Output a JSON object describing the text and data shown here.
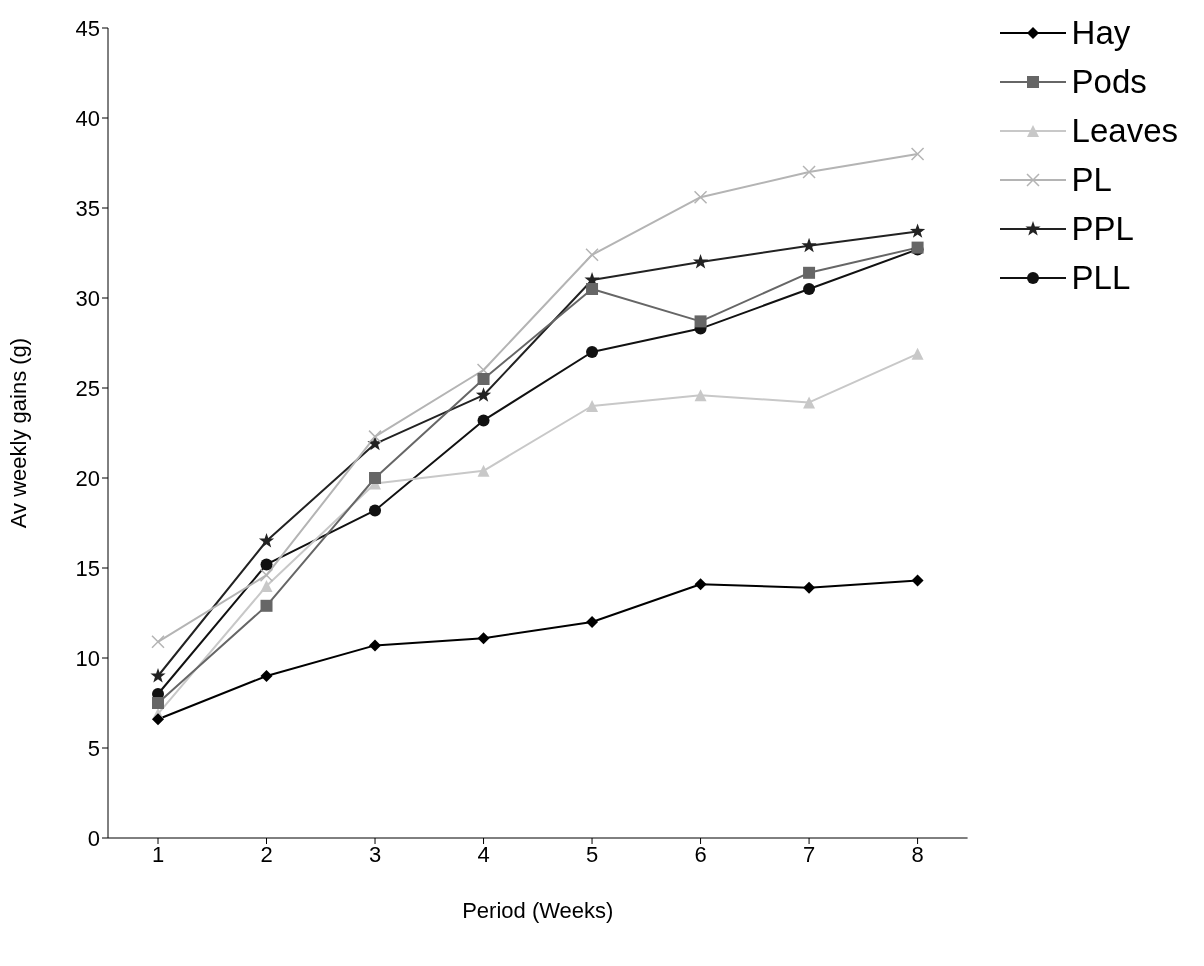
{
  "chart_data": {
    "type": "line",
    "xlabel": "Period (Weeks)",
    "ylabel": "Av weekly gains (g)",
    "categories": [
      "1",
      "2",
      "3",
      "4",
      "5",
      "6",
      "7",
      "8"
    ],
    "series": [
      {
        "name": "Hay",
        "color": "#000000",
        "marker": "diamond",
        "values": [
          6.6,
          9.0,
          10.7,
          11.1,
          12.0,
          14.1,
          13.9,
          14.3
        ]
      },
      {
        "name": "Pods",
        "color": "#666666",
        "marker": "square",
        "values": [
          7.5,
          12.9,
          20.0,
          25.5,
          30.5,
          28.7,
          31.4,
          32.8
        ]
      },
      {
        "name": "Leaves",
        "color": "#c8c8c8",
        "marker": "triangle",
        "values": [
          6.9,
          14.0,
          19.7,
          20.4,
          24.0,
          24.6,
          24.2,
          26.9
        ]
      },
      {
        "name": "PL",
        "color": "#b4b4b4",
        "marker": "cross",
        "values": [
          10.9,
          14.6,
          22.3,
          26.0,
          32.4,
          35.6,
          37.0,
          38.0
        ]
      },
      {
        "name": "PPL",
        "color": "#222222",
        "marker": "star",
        "values": [
          9.0,
          16.5,
          21.9,
          24.6,
          31.0,
          32.0,
          32.9,
          33.7
        ]
      },
      {
        "name": "PLL",
        "color": "#111111",
        "marker": "circle",
        "values": [
          8.0,
          15.2,
          18.2,
          23.2,
          27.0,
          28.3,
          30.5,
          32.7
        ]
      }
    ],
    "ylim": [
      0,
      45
    ],
    "yticks": [
      0,
      5,
      10,
      15,
      20,
      25,
      30,
      35,
      40,
      45
    ],
    "grid": false,
    "legend": "top right",
    "line_style": "solid"
  }
}
